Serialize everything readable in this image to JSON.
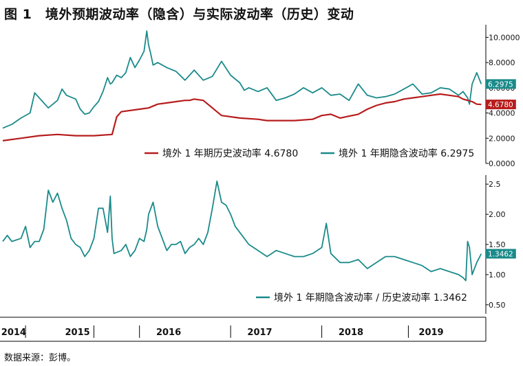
{
  "title": "图 1　境外预期波动率（隐含）与实际波动率（历史）变动",
  "source": "数据来源：彭博。",
  "colors": {
    "implied": "#1a8a8a",
    "historical": "#b71c1c",
    "grid": "#000000"
  },
  "chart_data": [
    {
      "type": "line",
      "panel": "top",
      "ylim": [
        0,
        11
      ],
      "yticks": [
        0,
        2,
        4,
        6,
        8,
        10
      ],
      "ytick_labels": [
        "0.0000",
        "2.0000",
        "4.0000",
        "6.0000",
        "8.0000",
        "10.0000"
      ],
      "last_value_labels": {
        "implied": "6.2975",
        "historical": "4.6780"
      },
      "legend": [
        {
          "series": "historical",
          "label": "境外 1 年期历史波动率 4.6780"
        },
        {
          "series": "implied",
          "label": "境外 1 年期隐含波动率 6.2975"
        }
      ],
      "series": [
        {
          "key": "implied",
          "name": "境外 1 年期隐含波动率",
          "x": [
            2014.0,
            2014.1,
            2014.2,
            2014.3,
            2014.35,
            2014.4,
            2014.5,
            2014.6,
            2014.65,
            2014.7,
            2014.8,
            2014.85,
            2014.9,
            2014.95,
            2015.0,
            2015.05,
            2015.1,
            2015.15,
            2015.18,
            2015.2,
            2015.25,
            2015.3,
            2015.35,
            2015.4,
            2015.45,
            2015.5,
            2015.55,
            2015.58,
            2015.6,
            2015.62,
            2015.65,
            2015.7,
            2015.8,
            2015.9,
            2016.0,
            2016.1,
            2016.2,
            2016.3,
            2016.4,
            2016.5,
            2016.6,
            2016.65,
            2016.7,
            2016.8,
            2016.9,
            2017.0,
            2017.1,
            2017.2,
            2017.3,
            2017.4,
            2017.5,
            2017.6,
            2017.7,
            2017.8,
            2017.9,
            2018.0,
            2018.1,
            2018.2,
            2018.3,
            2018.4,
            2018.5,
            2018.6,
            2018.7,
            2018.8,
            2018.9,
            2019.0,
            2019.05,
            2019.1,
            2019.12,
            2019.15,
            2019.2,
            2019.25
          ],
          "y": [
            2.8,
            3.1,
            3.6,
            4.0,
            5.6,
            5.2,
            4.4,
            5.0,
            5.9,
            5.4,
            5.1,
            4.3,
            3.9,
            4.0,
            4.5,
            4.9,
            5.7,
            6.8,
            6.3,
            6.4,
            7.0,
            6.8,
            7.2,
            8.4,
            7.6,
            8.2,
            8.9,
            10.5,
            9.4,
            8.8,
            7.8,
            8.0,
            7.6,
            7.3,
            6.6,
            7.4,
            6.6,
            6.9,
            8.1,
            7.0,
            6.4,
            5.8,
            6.0,
            5.7,
            6.0,
            5.0,
            5.2,
            5.5,
            6.0,
            5.6,
            6.0,
            5.4,
            5.5,
            5.0,
            6.3,
            5.4,
            5.2,
            5.3,
            5.5,
            5.9,
            6.3,
            5.5,
            5.6,
            6.0,
            5.9,
            5.4,
            5.7,
            5.2,
            4.7,
            6.3,
            7.2,
            6.2975
          ]
        },
        {
          "key": "historical",
          "name": "境外 1 年期历史波动率",
          "x": [
            2014.0,
            2014.2,
            2014.4,
            2014.6,
            2014.8,
            2014.95,
            2015.0,
            2015.2,
            2015.25,
            2015.3,
            2015.5,
            2015.6,
            2015.7,
            2015.8,
            2015.9,
            2016.0,
            2016.05,
            2016.1,
            2016.2,
            2016.4,
            2016.6,
            2016.8,
            2016.9,
            2017.0,
            2017.2,
            2017.4,
            2017.5,
            2017.6,
            2017.7,
            2017.9,
            2018.0,
            2018.1,
            2018.2,
            2018.3,
            2018.4,
            2018.5,
            2018.6,
            2018.7,
            2018.8,
            2018.9,
            2019.0,
            2019.05,
            2019.1,
            2019.15,
            2019.2,
            2019.25
          ],
          "y": [
            1.8,
            2.0,
            2.2,
            2.3,
            2.2,
            2.2,
            2.2,
            2.3,
            3.7,
            4.1,
            4.3,
            4.4,
            4.7,
            4.8,
            4.9,
            5.0,
            5.0,
            5.1,
            5.0,
            3.8,
            3.6,
            3.5,
            3.4,
            3.4,
            3.4,
            3.5,
            3.8,
            3.9,
            3.6,
            3.9,
            4.3,
            4.6,
            4.8,
            4.9,
            5.1,
            5.2,
            5.3,
            5.4,
            5.5,
            5.4,
            5.3,
            5.1,
            5.0,
            4.9,
            4.7,
            4.678
          ]
        }
      ]
    },
    {
      "type": "line",
      "panel": "bottom",
      "ylim": [
        0.35,
        2.65
      ],
      "yticks": [
        0.5,
        1.0,
        1.5,
        2.0,
        2.5
      ],
      "ytick_labels": [
        "0.50",
        "1.00",
        "1.50",
        "2.00",
        "2.5"
      ],
      "last_value_labels": {
        "ratio": "1.3462"
      },
      "legend": [
        {
          "series": "ratio",
          "label": "境外 1 年期隐含波动率 / 历史波动率 1.3462"
        }
      ],
      "series": [
        {
          "key": "ratio",
          "name": "境外 1 年期隐含波动率 / 历史波动率",
          "x": [
            2014.0,
            2014.05,
            2014.1,
            2014.2,
            2014.25,
            2014.3,
            2014.35,
            2014.4,
            2014.45,
            2014.5,
            2014.55,
            2014.6,
            2014.65,
            2014.7,
            2014.75,
            2014.8,
            2014.85,
            2014.9,
            2014.95,
            2015.0,
            2015.05,
            2015.1,
            2015.15,
            2015.18,
            2015.2,
            2015.22,
            2015.3,
            2015.35,
            2015.4,
            2015.45,
            2015.5,
            2015.55,
            2015.58,
            2015.6,
            2015.65,
            2015.7,
            2015.75,
            2015.8,
            2015.85,
            2015.9,
            2015.95,
            2016.0,
            2016.05,
            2016.1,
            2016.15,
            2016.2,
            2016.25,
            2016.3,
            2016.35,
            2016.4,
            2016.45,
            2016.5,
            2016.55,
            2016.6,
            2016.65,
            2016.7,
            2016.8,
            2016.9,
            2017.0,
            2017.1,
            2017.2,
            2017.3,
            2017.4,
            2017.5,
            2017.55,
            2017.6,
            2017.7,
            2017.8,
            2017.9,
            2018.0,
            2018.1,
            2018.2,
            2018.3,
            2018.4,
            2018.5,
            2018.6,
            2018.7,
            2018.8,
            2018.9,
            2019.0,
            2019.05,
            2019.08,
            2019.1,
            2019.12,
            2019.15,
            2019.2,
            2019.25
          ],
          "y": [
            1.55,
            1.65,
            1.55,
            1.6,
            1.8,
            1.45,
            1.55,
            1.55,
            1.75,
            2.4,
            2.2,
            2.35,
            2.1,
            1.9,
            1.6,
            1.5,
            1.45,
            1.3,
            1.4,
            1.6,
            2.1,
            2.1,
            1.7,
            2.3,
            1.6,
            1.35,
            1.4,
            1.5,
            1.3,
            1.4,
            1.6,
            1.55,
            1.75,
            2.0,
            2.2,
            1.8,
            1.6,
            1.4,
            1.5,
            1.5,
            1.55,
            1.35,
            1.45,
            1.5,
            1.6,
            1.5,
            1.7,
            2.1,
            2.55,
            2.2,
            2.15,
            2.0,
            1.8,
            1.7,
            1.6,
            1.5,
            1.4,
            1.3,
            1.4,
            1.35,
            1.3,
            1.3,
            1.35,
            1.45,
            1.85,
            1.35,
            1.2,
            1.2,
            1.25,
            1.1,
            1.2,
            1.3,
            1.3,
            1.25,
            1.2,
            1.15,
            1.05,
            1.1,
            1.05,
            1.0,
            0.95,
            0.9,
            1.55,
            1.45,
            1.0,
            1.2,
            1.3462
          ]
        }
      ]
    }
  ],
  "x_axis": {
    "labels": [
      "2014",
      "2015",
      "2016",
      "2017",
      "2018",
      "2019"
    ],
    "label_positions": [
      2014.12,
      2014.82,
      2015.82,
      2016.82,
      2017.82,
      2018.7
    ],
    "xlim": [
      2014.0,
      2019.3
    ],
    "tick_years": [
      2014.25,
      2015.0,
      2015.5,
      2016.5,
      2017.5,
      2018.45
    ]
  }
}
